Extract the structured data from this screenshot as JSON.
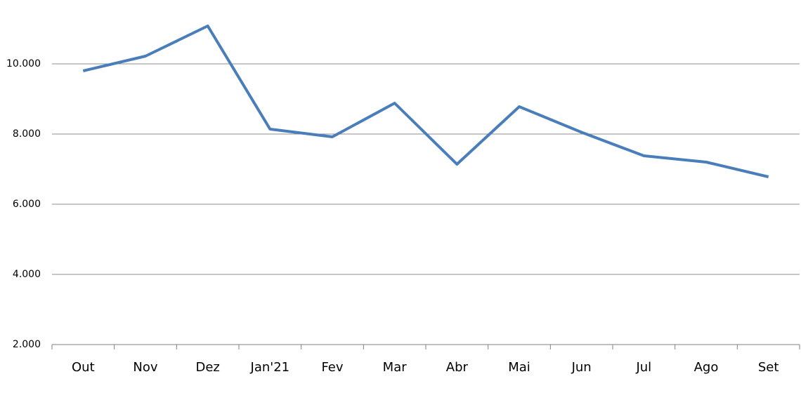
{
  "chart_data": {
    "type": "line",
    "categories": [
      "Out",
      "Nov",
      "Dez",
      "Jan'21",
      "Fev",
      "Mar",
      "Abr",
      "Mai",
      "Jun",
      "Jul",
      "Ago",
      "Set"
    ],
    "series": [
      {
        "color": "#4a7ebb",
        "values": [
          9800,
          10220,
          11080,
          8140,
          7920,
          8880,
          7140,
          8780,
          8050,
          7380,
          7200,
          6780
        ]
      }
    ],
    "ylim": [
      2000,
      11800
    ],
    "yticks": [
      {
        "value": 2000,
        "label": "2.000"
      },
      {
        "value": 4000,
        "label": "4.000"
      },
      {
        "value": 6000,
        "label": "6.000"
      },
      {
        "value": 8000,
        "label": "8.000"
      },
      {
        "value": 10000,
        "label": "10.000"
      }
    ],
    "grid": true
  }
}
